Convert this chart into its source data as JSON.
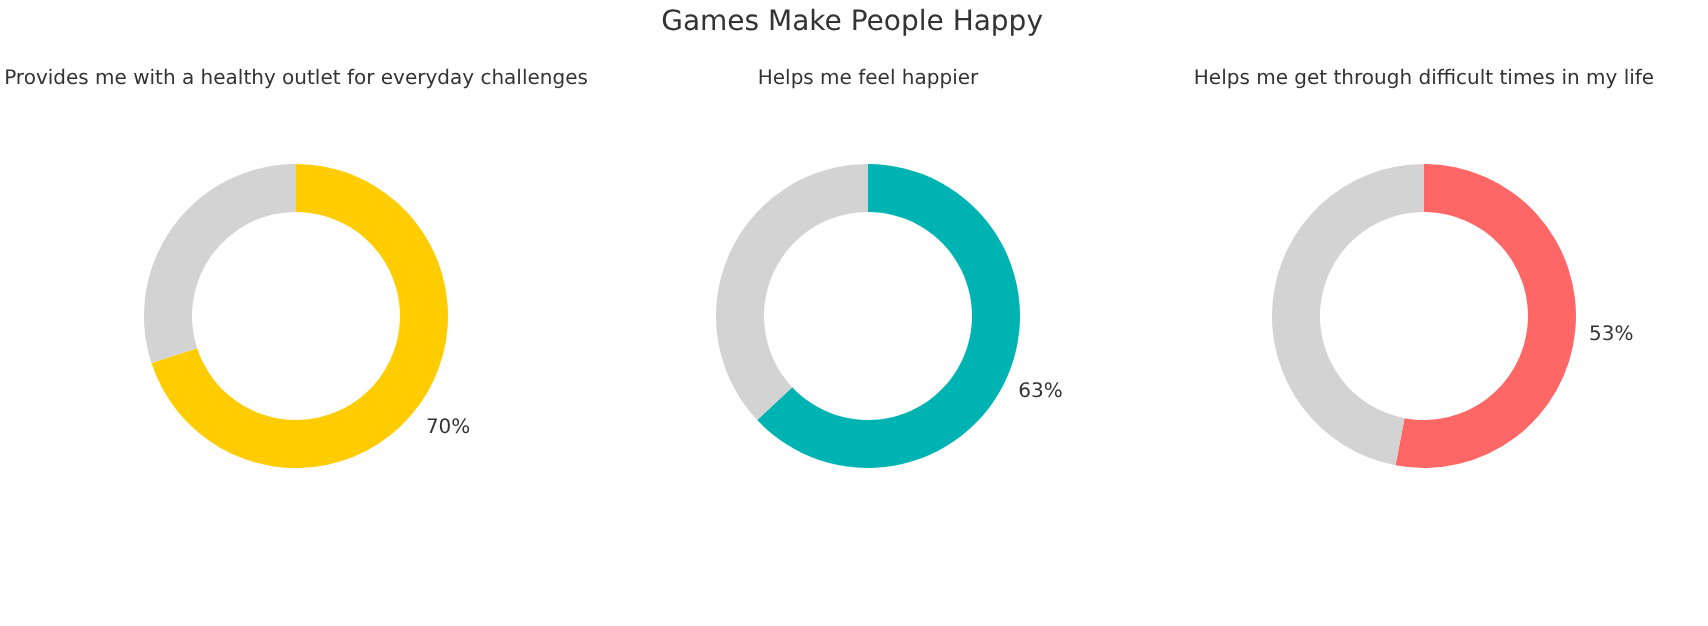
{
  "chart_data": [
    {
      "type": "donut",
      "subtitle": "Provides me with a healthy outlet for everyday challenges",
      "categories": [
        null,
        null
      ],
      "values": [
        70,
        30
      ],
      "colors": [
        "#ffcc00",
        "#d3d3d3"
      ],
      "value_labels": [
        "70%",
        null
      ]
    },
    {
      "type": "donut",
      "title": "Games Make People Happy",
      "subtitle": "Helps me feel happier",
      "categories": [
        null,
        null
      ],
      "values": [
        63,
        37
      ],
      "colors": [
        "#00b3b3",
        "#d3d3d3"
      ],
      "value_labels": [
        "63%",
        null
      ]
    },
    {
      "type": "donut",
      "subtitle": "Helps me get through difficult times in my life",
      "categories": [
        null,
        null
      ],
      "values": [
        53,
        47
      ],
      "colors": [
        "#ff6666",
        "#d3d3d3"
      ],
      "value_labels": [
        "53%",
        null
      ]
    }
  ]
}
